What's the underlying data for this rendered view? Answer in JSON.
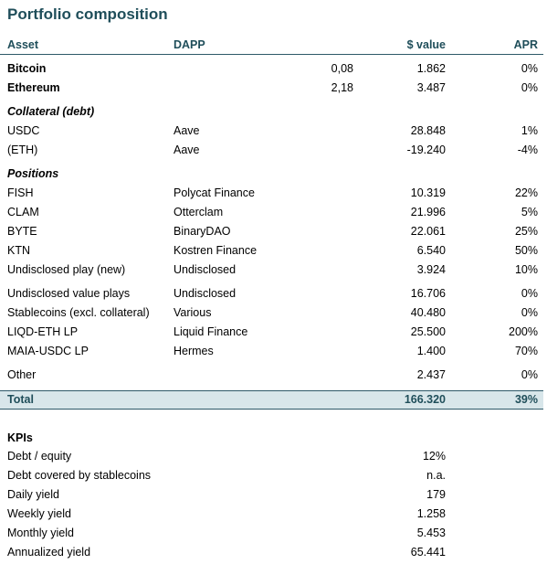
{
  "title": "Portfolio composition",
  "header": {
    "asset": "Asset",
    "dapp": "DAPP",
    "value": "$ value",
    "apr": "APR"
  },
  "holdings": [
    {
      "asset": "Bitcoin",
      "amount": "0,08",
      "value": "1.862",
      "apr": "0%"
    },
    {
      "asset": "Ethereum",
      "amount": "2,18",
      "value": "3.487",
      "apr": "0%"
    }
  ],
  "collateral_title": "Collateral (debt)",
  "collateral": [
    {
      "asset": "USDC",
      "dapp": "Aave",
      "value": "28.848",
      "apr": "1%"
    },
    {
      "asset": "(ETH)",
      "dapp": "Aave",
      "value": "-19.240",
      "apr": "-4%"
    }
  ],
  "positions_title": "Positions",
  "positions": [
    {
      "asset": "FISH",
      "dapp": "Polycat Finance",
      "value": "10.319",
      "apr": "22%"
    },
    {
      "asset": "CLAM",
      "dapp": "Otterclam",
      "value": "21.996",
      "apr": "5%"
    },
    {
      "asset": "BYTE",
      "dapp": "BinaryDAO",
      "value": "22.061",
      "apr": "25%"
    },
    {
      "asset": "KTN",
      "dapp": "Kostren Finance",
      "value": "6.540",
      "apr": "50%"
    },
    {
      "asset": "Undisclosed play (new)",
      "dapp": "Undisclosed",
      "value": "3.924",
      "apr": "10%"
    },
    {
      "asset": "Undisclosed value plays",
      "dapp": "Undisclosed",
      "value": "16.706",
      "apr": "0%"
    },
    {
      "asset": "Stablecoins (excl. collateral)",
      "dapp": "Various",
      "value": "40.480",
      "apr": "0%"
    },
    {
      "asset": "LIQD-ETH LP",
      "dapp": "Liquid Finance",
      "value": "25.500",
      "apr": "200%"
    },
    {
      "asset": "MAIA-USDC LP",
      "dapp": "Hermes",
      "value": "1.400",
      "apr": "70%"
    },
    {
      "asset": "Other",
      "dapp": "",
      "value": "2.437",
      "apr": "0%"
    }
  ],
  "total": {
    "label": "Total",
    "value": "166.320",
    "apr": "39%"
  },
  "kpis_title": "KPIs",
  "kpis": [
    {
      "label": "Debt / equity",
      "value": "12%"
    },
    {
      "label": "Debt covered by stablecoins",
      "value": "n.a."
    },
    {
      "label": "Daily yield",
      "value": "179"
    },
    {
      "label": "Weekly yield",
      "value": "1.258"
    },
    {
      "label": "Monthly yield",
      "value": "5.453"
    },
    {
      "label": "Annualized yield",
      "value": "65.441"
    }
  ]
}
